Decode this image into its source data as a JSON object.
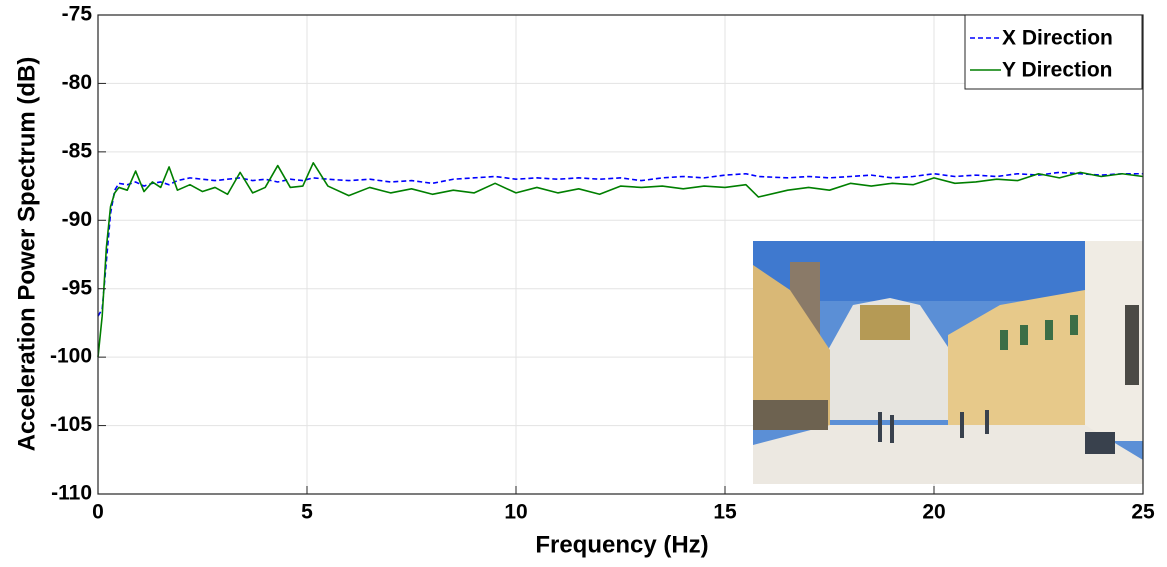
{
  "chart_data": {
    "type": "line",
    "xlabel": "Frequency (Hz)",
    "ylabel": "Acceleration Power Spectrum (dB)",
    "xlim": [
      0,
      25
    ],
    "ylim": [
      -110,
      -75
    ],
    "xticks": [
      0,
      5,
      10,
      15,
      20,
      25
    ],
    "yticks": [
      -110,
      -105,
      -100,
      -95,
      -90,
      -85,
      -80,
      -75
    ],
    "grid": true,
    "legend": "upper-right",
    "x": [
      0,
      0.1,
      0.2,
      0.3,
      0.4,
      0.5,
      0.7,
      0.9,
      1.1,
      1.3,
      1.5,
      1.7,
      1.9,
      2.2,
      2.5,
      2.8,
      3.1,
      3.4,
      3.7,
      4.0,
      4.3,
      4.6,
      4.9,
      5.15,
      5.5,
      6,
      6.5,
      7,
      7.5,
      8,
      8.5,
      9,
      9.5,
      10,
      10.5,
      11,
      11.5,
      12,
      12.5,
      13,
      13.5,
      14,
      14.5,
      15,
      15.5,
      15.8,
      16.5,
      17,
      17.5,
      18,
      18.5,
      19,
      19.5,
      20,
      20.5,
      21,
      21.5,
      22,
      22.5,
      23,
      23.5,
      24,
      24.5,
      25
    ],
    "series": [
      {
        "name": "X Direction",
        "color": "#0000ff",
        "line_style": "dashed",
        "values": [
          -97,
          -96.5,
          -93,
          -89.5,
          -87.8,
          -87.3,
          -87.4,
          -87.2,
          -87.5,
          -87.3,
          -87.2,
          -87.4,
          -87.1,
          -86.9,
          -87.0,
          -87.1,
          -87.0,
          -86.9,
          -87.1,
          -87.0,
          -87.2,
          -87.0,
          -87.1,
          -86.9,
          -87.0,
          -87.1,
          -87.0,
          -87.2,
          -87.1,
          -87.3,
          -87.0,
          -86.9,
          -86.8,
          -87.0,
          -86.9,
          -87.0,
          -86.9,
          -87.0,
          -86.9,
          -87.1,
          -86.9,
          -86.8,
          -86.9,
          -86.7,
          -86.6,
          -86.8,
          -86.9,
          -86.8,
          -86.9,
          -86.8,
          -86.7,
          -86.9,
          -86.8,
          -86.6,
          -86.8,
          -86.7,
          -86.8,
          -86.6,
          -86.7,
          -86.5,
          -86.6,
          -86.7,
          -86.6,
          -86.6
        ]
      },
      {
        "name": "Y Direction",
        "color": "#007f00",
        "line_style": "solid",
        "values": [
          -100,
          -97,
          -92,
          -89,
          -88,
          -87.6,
          -87.8,
          -86.4,
          -87.9,
          -87.2,
          -87.6,
          -86.1,
          -87.8,
          -87.4,
          -87.9,
          -87.6,
          -88.1,
          -86.5,
          -88.0,
          -87.6,
          -86.0,
          -87.6,
          -87.5,
          -85.8,
          -87.5,
          -88.2,
          -87.6,
          -88.0,
          -87.7,
          -88.1,
          -87.8,
          -88.0,
          -87.3,
          -88.0,
          -87.6,
          -88.0,
          -87.7,
          -88.1,
          -87.5,
          -87.6,
          -87.5,
          -87.7,
          -87.5,
          -87.6,
          -87.4,
          -88.3,
          -87.8,
          -87.6,
          -87.8,
          -87.3,
          -87.5,
          -87.3,
          -87.4,
          -86.9,
          -87.3,
          -87.2,
          -87.0,
          -87.1,
          -86.6,
          -86.9,
          -86.5,
          -86.8,
          -86.6,
          -86.8
        ]
      }
    ]
  }
}
